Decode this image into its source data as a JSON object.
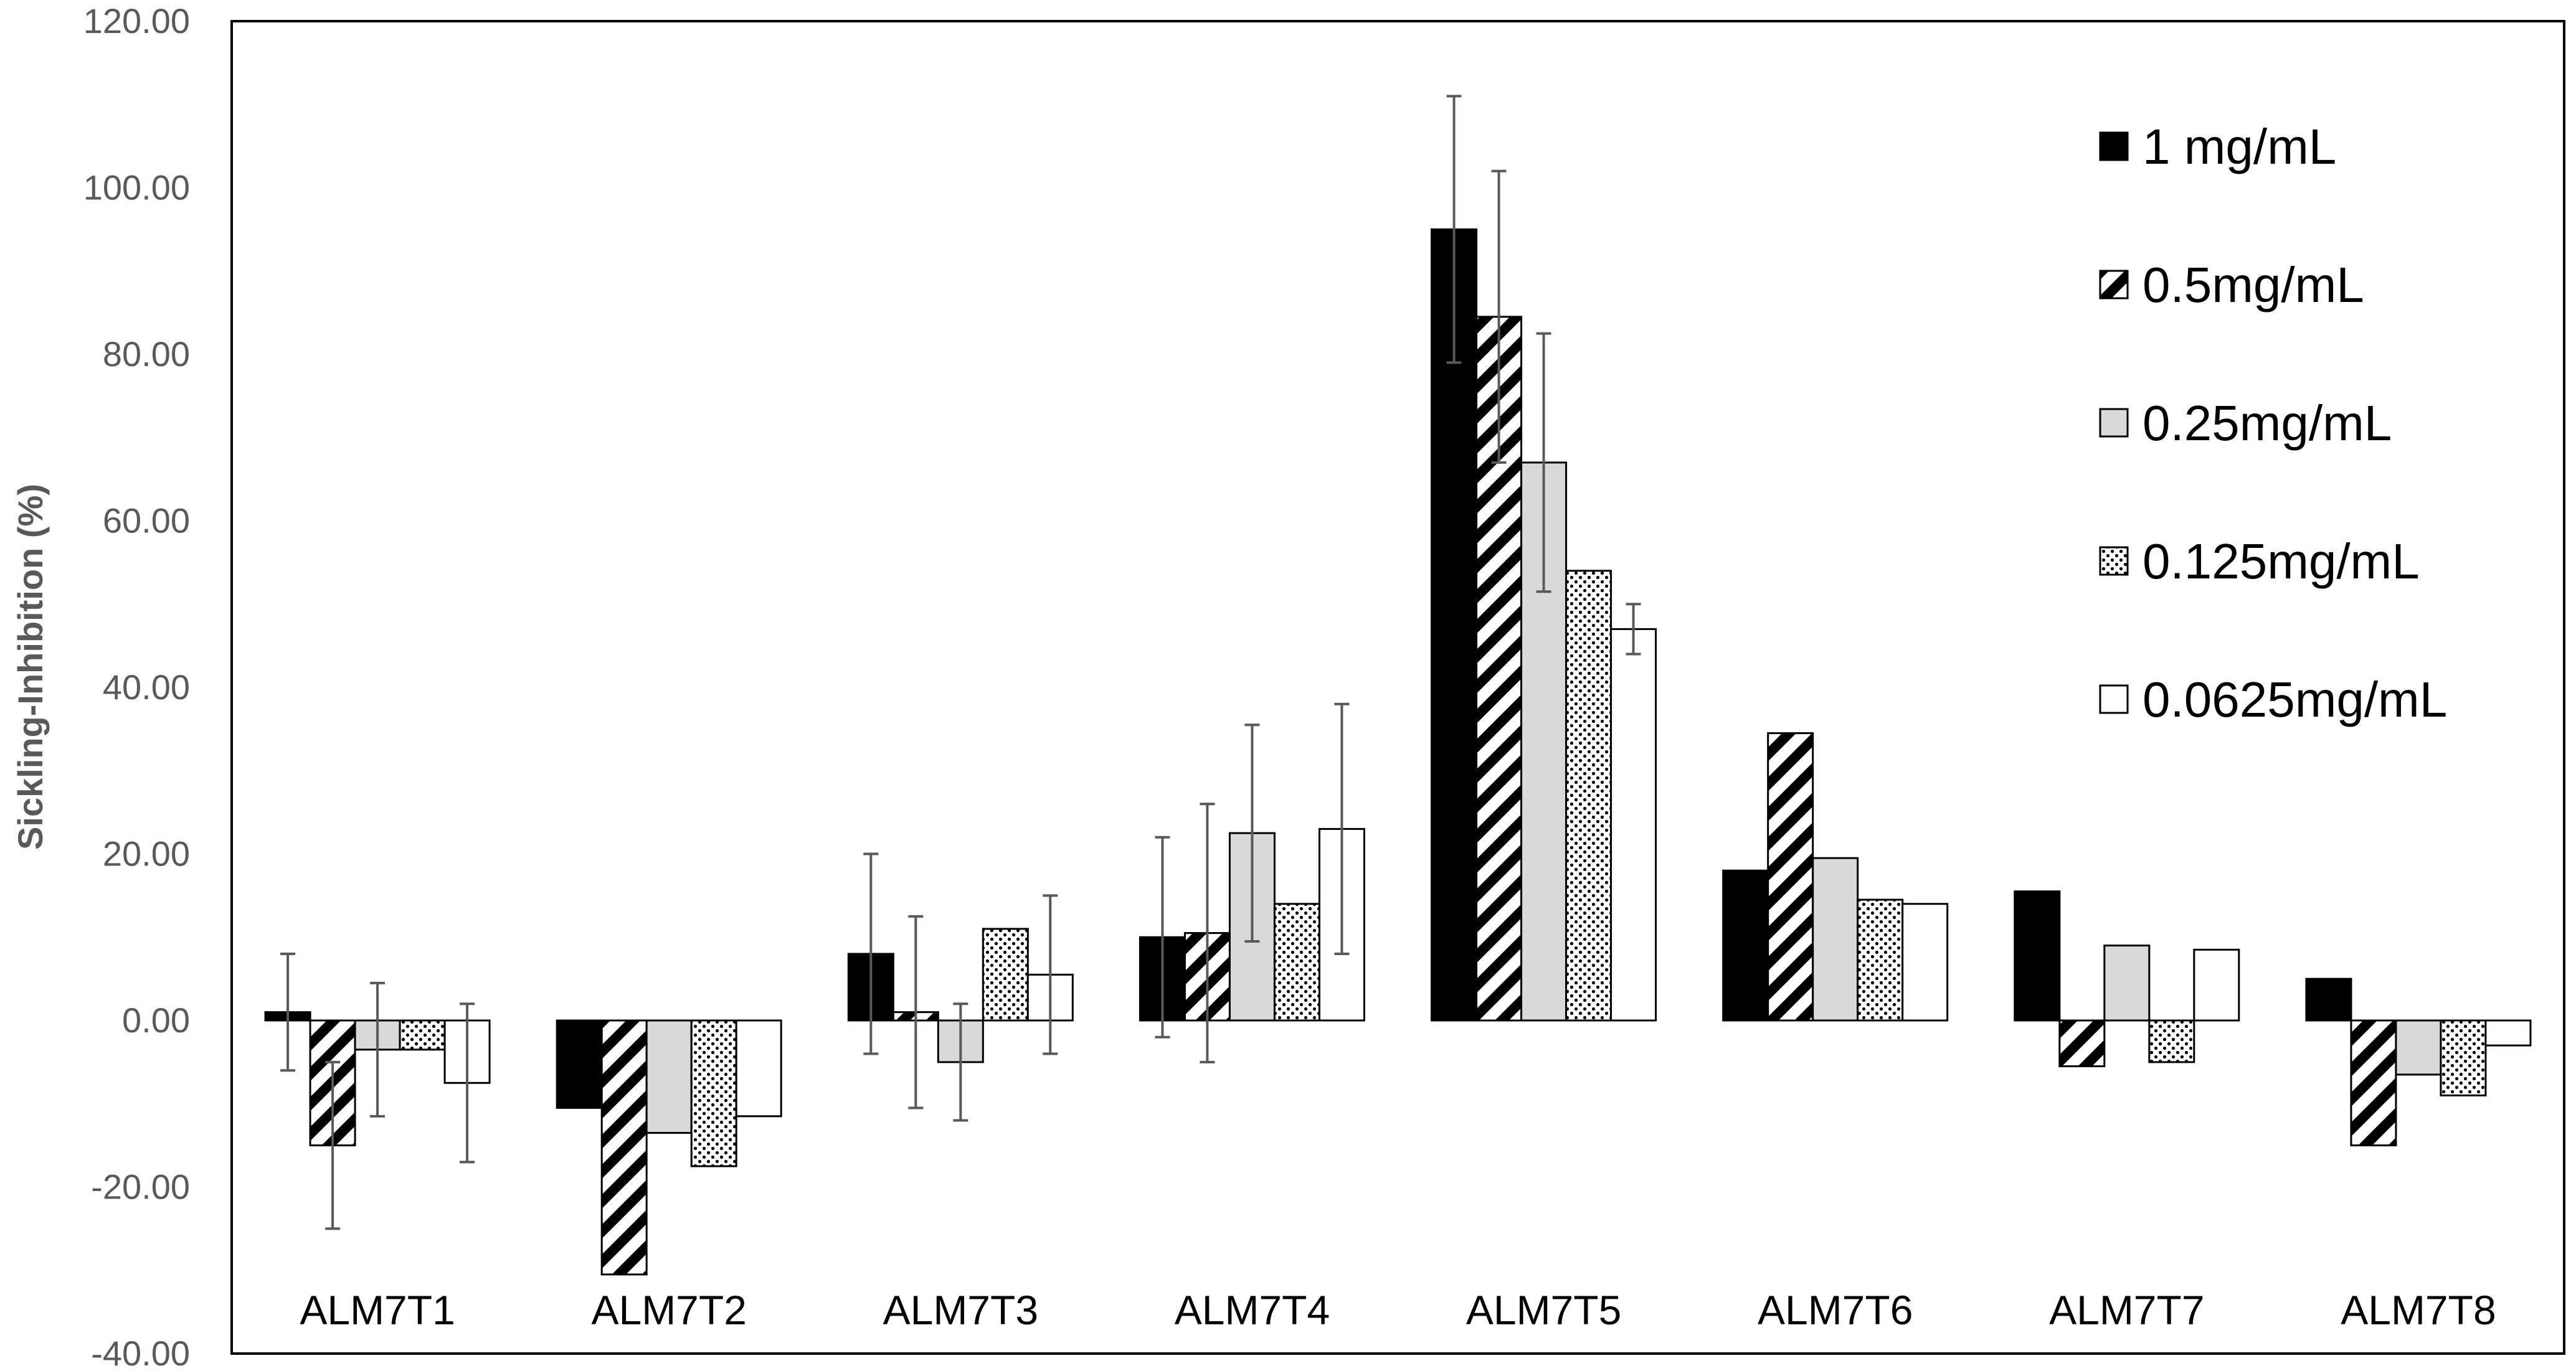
{
  "chart_data": {
    "type": "bar",
    "title": "",
    "xlabel": "",
    "ylabel": "Sickling-Inhibition (%)",
    "ylim": [
      -40,
      120
    ],
    "yticks": [
      "-40.00",
      "-20.00",
      "0.00",
      "20.00",
      "40.00",
      "60.00",
      "80.00",
      "100.00",
      "120.00"
    ],
    "grid": false,
    "legend_position": "top-right",
    "categories": [
      "ALM7T1",
      "ALM7T2",
      "ALM7T3",
      "ALM7T4",
      "ALM7T5",
      "ALM7T6",
      "ALM7T7",
      "ALM7T8"
    ],
    "series": [
      {
        "name": "1 mg/mL",
        "pattern": "solid-black",
        "values": [
          1,
          -10.5,
          8,
          10,
          95,
          18,
          15.5,
          5
        ],
        "errors": [
          7,
          0,
          12,
          12,
          16,
          0,
          0,
          0
        ]
      },
      {
        "name": "0.5mg/mL",
        "pattern": "diagonal-hatch",
        "values": [
          -15,
          -30.5,
          1,
          10.5,
          84.5,
          34.5,
          -5.5,
          -15
        ],
        "errors": [
          10,
          0,
          11.5,
          15.5,
          17.5,
          0,
          0,
          0
        ]
      },
      {
        "name": "0.25mg/mL",
        "pattern": "solid-gray",
        "values": [
          -3.5,
          -13.5,
          -5,
          22.5,
          67,
          19.5,
          9,
          -6.5
        ],
        "errors": [
          8,
          0,
          7,
          13,
          15.5,
          0,
          0,
          0
        ]
      },
      {
        "name": "0.125mg/mL",
        "pattern": "dotted",
        "values": [
          -3.5,
          -17.5,
          11,
          14,
          54,
          14.5,
          -5,
          -9
        ],
        "errors": [
          0,
          0,
          0,
          0,
          0,
          0,
          0,
          0
        ]
      },
      {
        "name": "0.0625mg/mL",
        "pattern": "solid-white",
        "values": [
          -7.5,
          -11.5,
          5.5,
          23,
          47,
          14,
          8.5,
          -3
        ],
        "errors": [
          9.5,
          0,
          9.5,
          15,
          3,
          0,
          0,
          0
        ]
      }
    ],
    "colors": {
      "black": "#000000",
      "gray": "#d9d9d9",
      "white": "#ffffff",
      "error_bar": "#595959",
      "tick_text": "#595959"
    }
  }
}
